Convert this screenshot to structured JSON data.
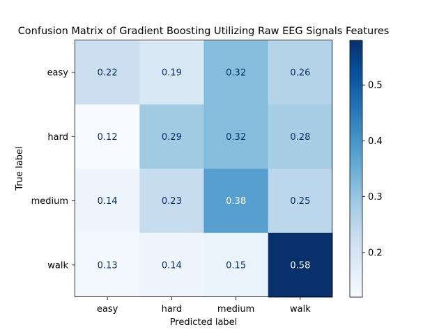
{
  "chart_data": {
    "type": "heatmap",
    "title": "Confusion Matrix of Gradient Boosting Utilizing Raw EEG Signals Features",
    "xlabel": "Predicted label",
    "ylabel": "True label",
    "x_categories": [
      "easy",
      "hard",
      "medium",
      "walk"
    ],
    "y_categories": [
      "easy",
      "hard",
      "medium",
      "walk"
    ],
    "values": [
      [
        0.22,
        0.19,
        0.32,
        0.26
      ],
      [
        0.12,
        0.29,
        0.32,
        0.28
      ],
      [
        0.14,
        0.23,
        0.38,
        0.25
      ],
      [
        0.13,
        0.14,
        0.15,
        0.58
      ]
    ],
    "cell_labels": [
      [
        "0.22",
        "0.19",
        "0.32",
        "0.26"
      ],
      [
        "0.12",
        "0.29",
        "0.32",
        "0.28"
      ],
      [
        "0.14",
        "0.23",
        "0.38",
        "0.25"
      ],
      [
        "0.13",
        "0.14",
        "0.15",
        "0.58"
      ]
    ],
    "colormap": "Blues",
    "color_range": [
      0.12,
      0.58
    ],
    "colorbar_ticks": [
      "0.2",
      "0.3",
      "0.4",
      "0.5"
    ],
    "colorbar_tick_values": [
      0.2,
      0.3,
      0.4,
      0.5
    ],
    "text_color_light": "#ffffff",
    "text_color_dark": "#08306b"
  }
}
